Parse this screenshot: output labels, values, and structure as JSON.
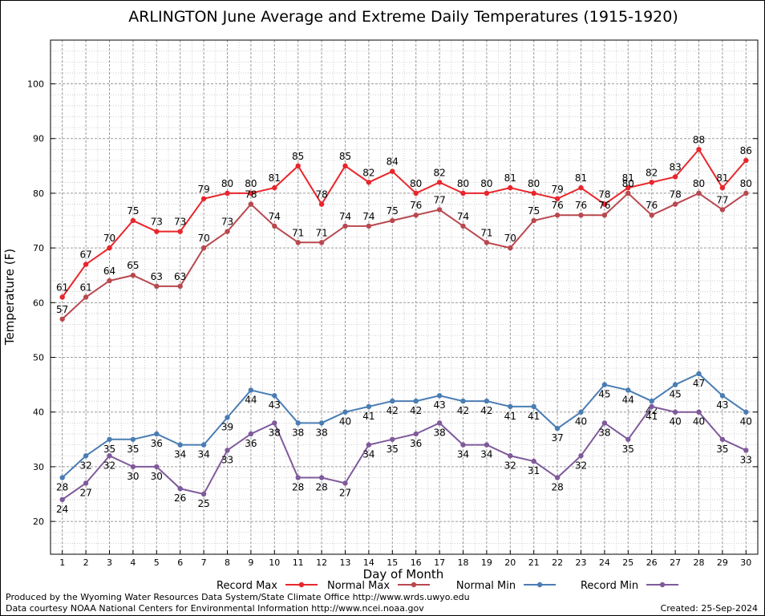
{
  "chart_data": {
    "type": "line",
    "title": "ARLINGTON June Average and Extreme Daily Temperatures (1915-1920)",
    "xlabel": "Day of Month",
    "ylabel": "Temperature (F)",
    "x": [
      1,
      2,
      3,
      4,
      5,
      6,
      7,
      8,
      9,
      10,
      11,
      12,
      13,
      14,
      15,
      16,
      17,
      18,
      19,
      20,
      21,
      22,
      23,
      24,
      25,
      26,
      27,
      28,
      29,
      30
    ],
    "x_tick_labels": [
      "1",
      "2",
      "3",
      "4",
      "5",
      "6",
      "7",
      "8",
      "9",
      "10",
      "11",
      "12",
      "13",
      "14",
      "15",
      "16",
      "17",
      "18",
      "19",
      "20",
      "21",
      "22",
      "23",
      "24",
      "25",
      "26",
      "27",
      "28",
      "29",
      "30"
    ],
    "y_tick_labels": [
      "20",
      "30",
      "40",
      "50",
      "60",
      "70",
      "80",
      "90",
      "100"
    ],
    "y_ticks": [
      20,
      30,
      40,
      50,
      60,
      70,
      80,
      90,
      100
    ],
    "xlim": [
      0.5,
      30.5
    ],
    "ylim": [
      14,
      108
    ],
    "grid": true,
    "legend_position": "bottom",
    "series": [
      {
        "name": "Record Max",
        "color": "#e8262b",
        "label_position": "above",
        "values": [
          61,
          67,
          70,
          75,
          73,
          73,
          79,
          80,
          80,
          81,
          85,
          78,
          85,
          82,
          84,
          80,
          82,
          80,
          80,
          81,
          80,
          79,
          81,
          78,
          81,
          82,
          83,
          88,
          81,
          86
        ]
      },
      {
        "name": "Normal Max",
        "color": "#b9484f",
        "label_position": "above",
        "values": [
          57,
          61,
          64,
          65,
          63,
          63,
          70,
          73,
          78,
          74,
          71,
          71,
          74,
          74,
          75,
          76,
          77,
          74,
          71,
          70,
          75,
          76,
          76,
          76,
          80,
          76,
          78,
          80,
          77,
          80
        ]
      },
      {
        "name": "Normal Min",
        "color": "#4a7db3",
        "label_position": "below",
        "values": [
          28,
          32,
          35,
          35,
          36,
          34,
          34,
          39,
          44,
          43,
          38,
          38,
          40,
          41,
          42,
          42,
          43,
          42,
          42,
          41,
          41,
          37,
          40,
          45,
          44,
          42,
          45,
          47,
          43,
          40
        ]
      },
      {
        "name": "Record Min",
        "color": "#7f5a9b",
        "label_position": "below",
        "values": [
          24,
          27,
          32,
          30,
          30,
          26,
          25,
          33,
          36,
          38,
          28,
          28,
          27,
          34,
          35,
          36,
          38,
          34,
          34,
          32,
          31,
          28,
          32,
          38,
          35,
          41,
          40,
          40,
          35,
          33
        ]
      }
    ]
  },
  "footer": {
    "produced_by": "Produced by the Wyoming Water Resources Data System/State Climate Office http://www.wrds.uwyo.edu",
    "courtesy": "Data courtesy NOAA National Centers for Environmental Information http://www.ncei.noaa.gov",
    "created": "Created: 25-Sep-2024"
  }
}
